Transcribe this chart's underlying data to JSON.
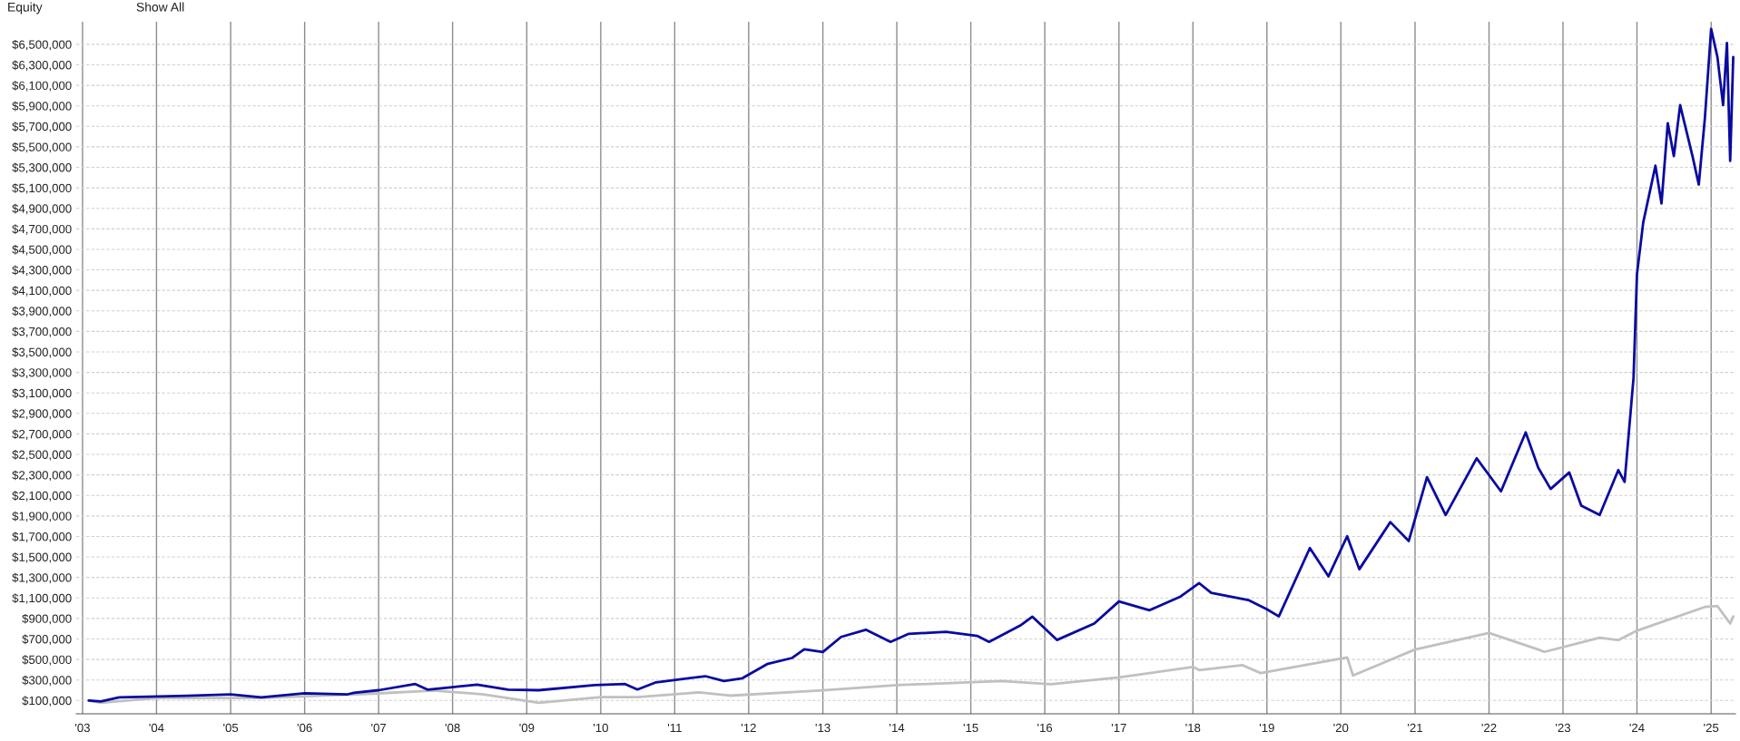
{
  "chart_data": {
    "type": "line",
    "title": "Equity",
    "annotations": [
      "Show All"
    ],
    "xlim": [
      "2002-12-01",
      "2025-05-01"
    ],
    "xticks": [
      {
        "value": "2003-01-01",
        "label": "'03"
      },
      {
        "value": "2004-01-01",
        "label": "'04"
      },
      {
        "value": "2005-01-01",
        "label": "'05"
      },
      {
        "value": "2006-01-01",
        "label": "'06"
      },
      {
        "value": "2007-01-01",
        "label": "'07"
      },
      {
        "value": "2008-01-01",
        "label": "'08"
      },
      {
        "value": "2009-01-01",
        "label": "'09"
      },
      {
        "value": "2010-01-01",
        "label": "'10"
      },
      {
        "value": "2011-01-01",
        "label": "'11"
      },
      {
        "value": "2012-01-01",
        "label": "'12"
      },
      {
        "value": "2013-01-01",
        "label": "'13"
      },
      {
        "value": "2014-01-01",
        "label": "'14"
      },
      {
        "value": "2015-01-01",
        "label": "'15"
      },
      {
        "value": "2016-01-01",
        "label": "'16"
      },
      {
        "value": "2017-01-01",
        "label": "'17"
      },
      {
        "value": "2018-01-01",
        "label": "'18"
      },
      {
        "value": "2019-01-01",
        "label": "'19"
      },
      {
        "value": "2020-01-01",
        "label": "'20"
      },
      {
        "value": "2021-01-01",
        "label": "'21"
      },
      {
        "value": "2022-01-01",
        "label": "'22"
      },
      {
        "value": "2023-01-01",
        "label": "'23"
      },
      {
        "value": "2024-01-01",
        "label": "'24"
      },
      {
        "value": "2025-01-01",
        "label": "'25"
      }
    ],
    "ylim": [
      -30000,
      6720000
    ],
    "yticks": [
      {
        "value": 100000,
        "label": "$100,000"
      },
      {
        "value": 300000,
        "label": "$300,000"
      },
      {
        "value": 500000,
        "label": "$500,000"
      },
      {
        "value": 700000,
        "label": "$700,000"
      },
      {
        "value": 900000,
        "label": "$900,000"
      },
      {
        "value": 1100000,
        "label": "$1,100,000"
      },
      {
        "value": 1300000,
        "label": "$1,300,000"
      },
      {
        "value": 1500000,
        "label": "$1,500,000"
      },
      {
        "value": 1700000,
        "label": "$1,700,000"
      },
      {
        "value": 1900000,
        "label": "$1,900,000"
      },
      {
        "value": 2100000,
        "label": "$2,100,000"
      },
      {
        "value": 2300000,
        "label": "$2,300,000"
      },
      {
        "value": 2500000,
        "label": "$2,500,000"
      },
      {
        "value": 2700000,
        "label": "$2,700,000"
      },
      {
        "value": 2900000,
        "label": "$2,900,000"
      },
      {
        "value": 3100000,
        "label": "$3,100,000"
      },
      {
        "value": 3300000,
        "label": "$3,300,000"
      },
      {
        "value": 3500000,
        "label": "$3,500,000"
      },
      {
        "value": 3700000,
        "label": "$3,700,000"
      },
      {
        "value": 3900000,
        "label": "$3,900,000"
      },
      {
        "value": 4100000,
        "label": "$4,100,000"
      },
      {
        "value": 4300000,
        "label": "$4,300,000"
      },
      {
        "value": 4500000,
        "label": "$4,500,000"
      },
      {
        "value": 4700000,
        "label": "$4,700,000"
      },
      {
        "value": 4900000,
        "label": "$4,900,000"
      },
      {
        "value": 5100000,
        "label": "$5,100,000"
      },
      {
        "value": 5300000,
        "label": "$5,300,000"
      },
      {
        "value": 5500000,
        "label": "$5,500,000"
      },
      {
        "value": 5700000,
        "label": "$5,700,000"
      },
      {
        "value": 5900000,
        "label": "$5,900,000"
      },
      {
        "value": 6100000,
        "label": "$6,100,000"
      },
      {
        "value": 6300000,
        "label": "$6,300,000"
      },
      {
        "value": 6500000,
        "label": "$6,500,000"
      }
    ],
    "grid": true,
    "marker": "none",
    "line_style": "solid",
    "series": [
      {
        "color": "#c0c0c0",
        "x": [
          "2003-02",
          "2003-04",
          "2004-01",
          "2005-06",
          "2007-01",
          "2007-10",
          "2008-06",
          "2009-03",
          "2010-01",
          "2010-07",
          "2011-05",
          "2011-10",
          "2013-01",
          "2014-01",
          "2015-06",
          "2016-02",
          "2017-01",
          "2018-01",
          "2018-02",
          "2018-09",
          "2018-12",
          "2020-02",
          "2020-03",
          "2021-01",
          "2022-01",
          "2022-09",
          "2022-10",
          "2023-07",
          "2023-10",
          "2024-01",
          "2024-12",
          "2025-02",
          "2025-04-05",
          "2025-04-20"
        ],
        "values": [
          100000,
          77000,
          123000,
          123000,
          169000,
          197000,
          160000,
          77000,
          132000,
          132000,
          179000,
          147000,
          199000,
          250000,
          289000,
          258000,
          325000,
          427000,
          396000,
          445000,
          367000,
          519000,
          344000,
          597000,
          758000,
          597000,
          574000,
          712000,
          689000,
          781000,
          1012000,
          1021000,
          850000,
          920000
        ]
      },
      {
        "color": "#0a0aa0",
        "x": [
          "2003-02",
          "2003-04",
          "2003-07",
          "2004-06",
          "2005-01",
          "2005-06",
          "2006-01",
          "2006-08",
          "2006-09",
          "2007-01",
          "2007-07",
          "2007-09",
          "2008-01",
          "2008-05",
          "2008-10",
          "2009-03",
          "2009-12",
          "2010-05",
          "2010-07",
          "2010-10",
          "2011-06",
          "2011-09",
          "2011-12",
          "2012-04",
          "2012-08",
          "2012-10",
          "2013-01",
          "2013-04",
          "2013-08",
          "2013-12",
          "2014-03",
          "2014-09",
          "2015-02",
          "2015-04",
          "2015-09",
          "2015-11",
          "2016-03",
          "2016-09",
          "2017-01",
          "2017-06",
          "2017-11",
          "2018-02",
          "2018-04",
          "2018-10",
          "2019-01",
          "2019-03",
          "2019-08",
          "2019-11",
          "2020-02",
          "2020-04",
          "2020-09",
          "2020-12",
          "2021-03",
          "2021-06",
          "2021-11",
          "2022-03",
          "2022-07",
          "2022-09",
          "2022-11",
          "2023-02",
          "2023-04",
          "2023-07",
          "2023-10",
          "2023-11",
          "2023-12-15",
          "2024-01",
          "2024-02",
          "2024-04",
          "2024-05",
          "2024-06",
          "2024-07",
          "2024-08",
          "2024-10",
          "2024-11",
          "2024-12",
          "2025-01",
          "2025-02",
          "2025-03",
          "2025-03-20",
          "2025-04-05",
          "2025-04-20"
        ],
        "values": [
          100000,
          90000,
          130000,
          145000,
          160000,
          130000,
          170000,
          160000,
          175000,
          200000,
          260000,
          205000,
          230000,
          255000,
          205000,
          200000,
          250000,
          260000,
          207000,
          277000,
          337000,
          290000,
          317000,
          455000,
          514000,
          600000,
          573000,
          720000,
          790000,
          672000,
          750000,
          770000,
          730000,
          672000,
          830000,
          917000,
          690000,
          850000,
          1066000,
          980000,
          1114000,
          1244000,
          1150000,
          1080000,
          990000,
          920000,
          1587000,
          1311000,
          1702000,
          1380000,
          1840000,
          1656000,
          2278000,
          1909000,
          2462000,
          2140000,
          2715000,
          2370000,
          2163000,
          2324000,
          2001000,
          1909000,
          2347000,
          2232000,
          3244000,
          4257000,
          4764000,
          5316000,
          4948000,
          5731000,
          5409000,
          5907000,
          5409000,
          5132000,
          5777000,
          6651000,
          6376000,
          5907000,
          6513000,
          5363000,
          6376000
        ]
      }
    ]
  }
}
